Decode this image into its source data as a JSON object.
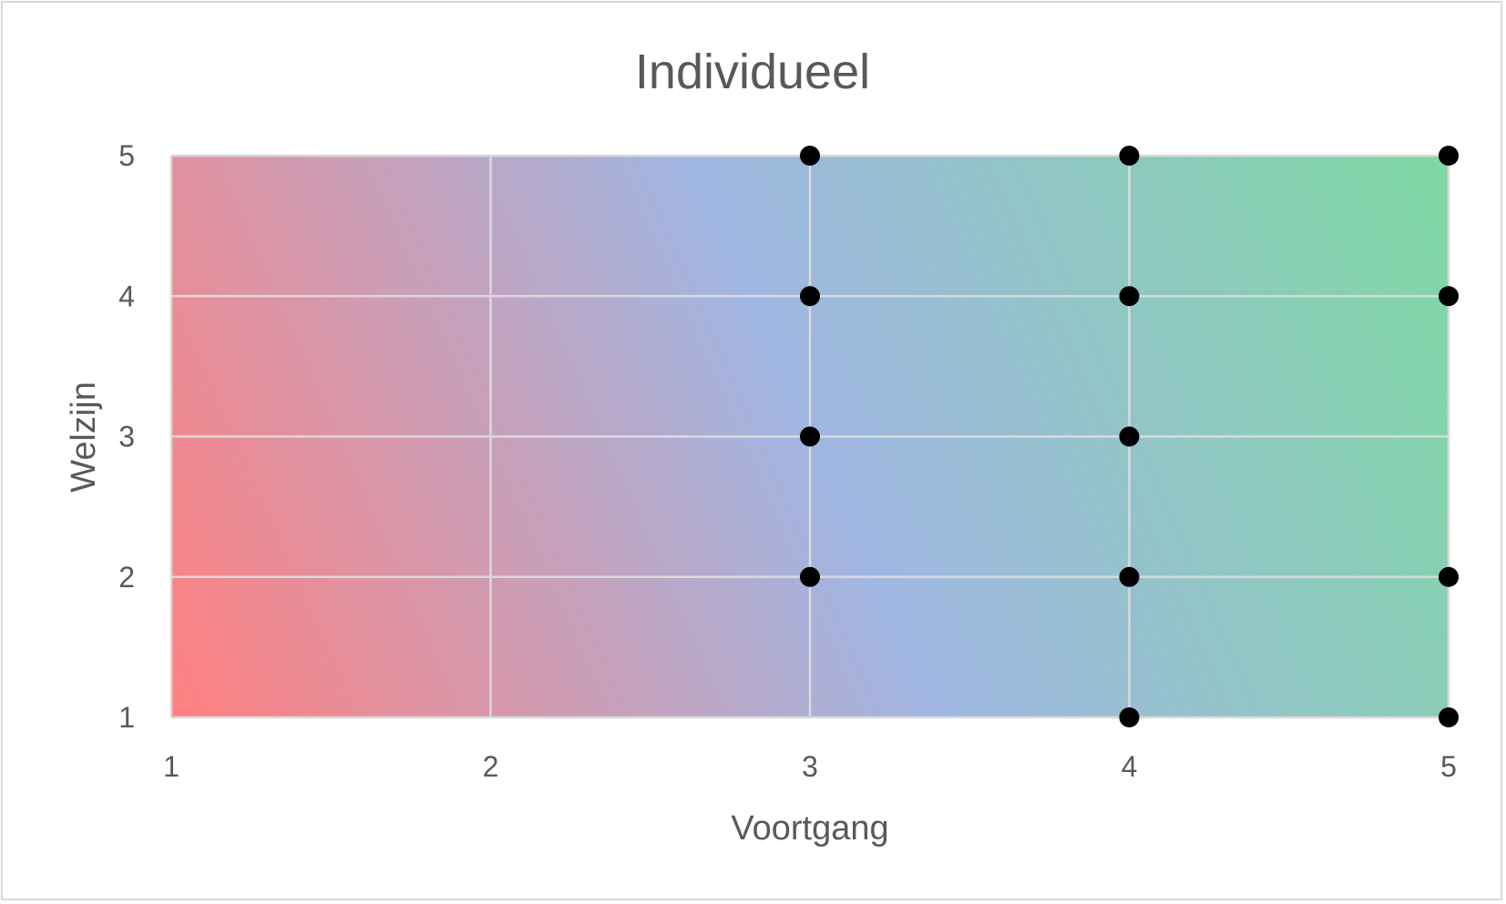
{
  "chart_data": {
    "type": "scatter",
    "title": "Individueel",
    "xlabel": "Voortgang",
    "ylabel": "Welzijn",
    "xlim": [
      1,
      5
    ],
    "ylim": [
      1,
      5
    ],
    "x_ticks": [
      "1",
      "2",
      "3",
      "4",
      "5"
    ],
    "y_ticks": [
      "1",
      "2",
      "3",
      "4",
      "5"
    ],
    "grid": true,
    "legend": "none",
    "background_gradient": {
      "bottom_left": "#ff8080",
      "middle": "#a0b6e2",
      "top_right": "#7fd8a3"
    },
    "series": [
      {
        "points": [
          [
            3,
            5
          ],
          [
            3,
            4
          ],
          [
            3,
            3
          ],
          [
            3,
            2
          ],
          [
            4,
            5
          ],
          [
            4,
            4
          ],
          [
            4,
            3
          ],
          [
            4,
            2
          ],
          [
            4,
            1
          ],
          [
            5,
            5
          ],
          [
            5,
            4
          ],
          [
            5,
            2
          ],
          [
            5,
            1
          ]
        ],
        "color": "#000000"
      }
    ]
  }
}
